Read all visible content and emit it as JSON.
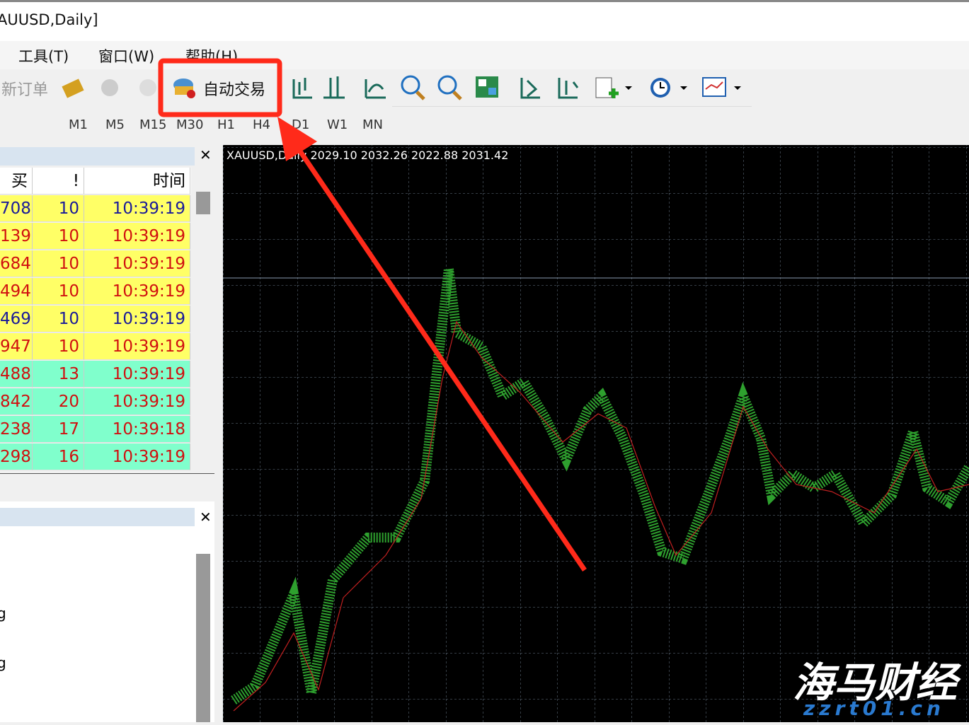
{
  "window": {
    "title": "AUUSD,Daily]"
  },
  "menu": [
    "工具(T)",
    "窗口(W)",
    "帮助(H)"
  ],
  "toolbar": {
    "new_order": "新订单",
    "auto_trading": "自动交易"
  },
  "timeframes": [
    "M1",
    "M5",
    "M15",
    "M30",
    "H1",
    "H4",
    "D1",
    "W1",
    "MN"
  ],
  "market_watch": {
    "headers": [
      "买价",
      "!",
      "时间"
    ],
    "rows": [
      {
        "cells": [
          "708",
          "10",
          "10:39:19"
        ],
        "color": "#1a1a9a",
        "background": "#ffff66"
      },
      {
        "cells": [
          "139",
          "10",
          "10:39:19"
        ],
        "color": "#d01010",
        "background": "#ffff66"
      },
      {
        "cells": [
          "684",
          "10",
          "10:39:19"
        ],
        "color": "#d01010",
        "background": "#ffff66"
      },
      {
        "cells": [
          "494",
          "10",
          "10:39:19"
        ],
        "color": "#d01010",
        "background": "#ffff66"
      },
      {
        "cells": [
          "469",
          "10",
          "10:39:19"
        ],
        "color": "#1a1a9a",
        "background": "#ffff66"
      },
      {
        "cells": [
          "947",
          "10",
          "10:39:19"
        ],
        "color": "#d01010",
        "background": "#ffff66"
      },
      {
        "cells": [
          "488",
          "13",
          "10:39:19"
        ],
        "color": "#d01010",
        "background": "#80ffcc"
      },
      {
        "cells": [
          "842",
          "20",
          "10:39:19"
        ],
        "color": "#d01010",
        "background": "#80ffcc"
      },
      {
        "cells": [
          "238",
          "17",
          "10:39:18"
        ],
        "color": "#d01010",
        "background": "#80ffcc"
      },
      {
        "cells": [
          "298",
          "16",
          "10:39:19"
        ],
        "color": "#d01010",
        "background": "#80ffcc"
      }
    ]
  },
  "lower_panel": {
    "items": [
      "g",
      "g"
    ]
  },
  "chart": {
    "header": "XAUUSD,Daily  2029.10 2032.26 2022.88 2031.42"
  },
  "watermark": {
    "brand": "海马财经",
    "site": "zzrt01.cn"
  }
}
